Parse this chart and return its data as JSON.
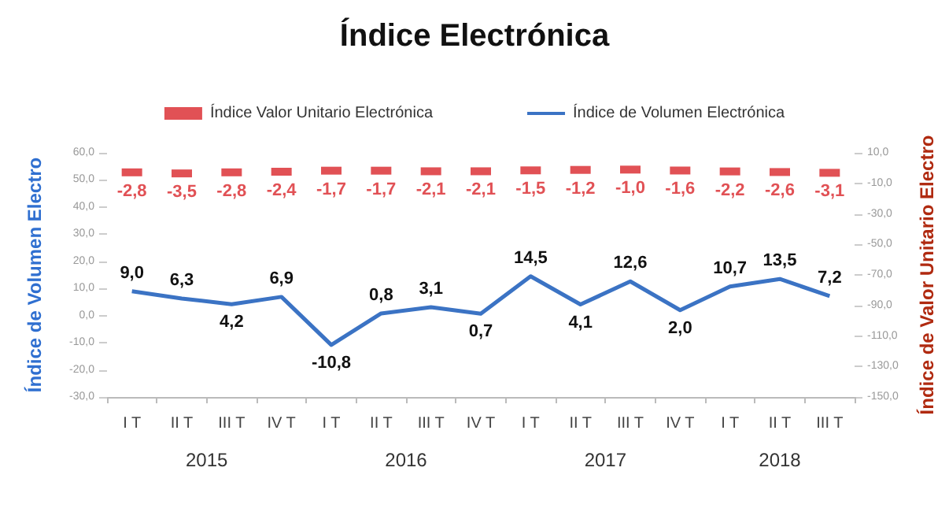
{
  "chart_data": {
    "type": "line",
    "title": "Índice Electrónica",
    "ylabel": "Índice de Volumen Electro",
    "y2label": "Índice de Valor Unitario Electro",
    "categories": [
      "I T",
      "II T",
      "III T",
      "IV T",
      "I T",
      "II T",
      "III T",
      "IV T",
      "I T",
      "II T",
      "III T",
      "IV T",
      "I T",
      "II T",
      "III T"
    ],
    "annotations": [
      "2015",
      "2016",
      "2017",
      "2018"
    ],
    "series": [
      {
        "name": "Índice Valor Unitario Electrónica",
        "type": "scatter",
        "marker": "square",
        "axis": "y2",
        "color": "#d9262b",
        "values": [
          -2.8,
          -3.5,
          -2.8,
          -2.4,
          -1.7,
          -1.7,
          -2.1,
          -2.1,
          -1.5,
          -1.2,
          -1.0,
          -1.6,
          -2.2,
          -2.6,
          -3.1
        ],
        "value_labels": [
          "-2,8",
          "-3,5",
          "-2,8",
          "-2,4",
          "-1,7",
          "-1,7",
          "-2,1",
          "-2,1",
          "-1,5",
          "-1,2",
          "-1,0",
          "-1,6",
          "-2,2",
          "-2,6",
          "-3,1"
        ]
      },
      {
        "name": "Índice de Volumen Electrónica",
        "color": "#3b73c4",
        "values": [
          9.0,
          6.3,
          4.2,
          6.9,
          -10.8,
          0.8,
          3.1,
          0.7,
          14.5,
          4.1,
          12.6,
          2.0,
          10.7,
          13.5,
          7.2
        ],
        "value_labels": [
          "9,0",
          "6,3",
          "4,2",
          "6,9",
          "-10,8",
          "0,8",
          "3,1",
          "0,7",
          "14,5",
          "4,1",
          "12,6",
          "2,0",
          "10,7",
          "13,5",
          "7,2"
        ]
      }
    ],
    "ylim": [
      -30,
      60
    ],
    "yticks": [
      {
        "value": -30,
        "label": "-30,0"
      },
      {
        "value": -20,
        "label": "-20,0"
      },
      {
        "value": -10,
        "label": "-10,0"
      },
      {
        "value": 0,
        "label": "0,0"
      },
      {
        "value": 10,
        "label": "10,0"
      },
      {
        "value": 20,
        "label": "20,0"
      },
      {
        "value": 30,
        "label": "30,0"
      },
      {
        "value": 40,
        "label": "40,0"
      },
      {
        "value": 50,
        "label": "50,0"
      },
      {
        "value": 60,
        "label": "60,0"
      }
    ],
    "y2lim": [
      -150,
      10
    ],
    "y2ticks": [
      {
        "value": -150,
        "label": "-150,0"
      },
      {
        "value": -130,
        "label": "-130,0"
      },
      {
        "value": -110,
        "label": "-110,0"
      },
      {
        "value": -90,
        "label": "-90,0"
      },
      {
        "value": -70,
        "label": "-70,0"
      },
      {
        "value": -50,
        "label": "-50,0"
      },
      {
        "value": -30,
        "label": "-30,0"
      },
      {
        "value": -10,
        "label": "-10,0"
      },
      {
        "value": 10,
        "label": "10,0"
      }
    ],
    "legend": "top",
    "grid": false,
    "marker": "none",
    "line_style": "solid"
  }
}
